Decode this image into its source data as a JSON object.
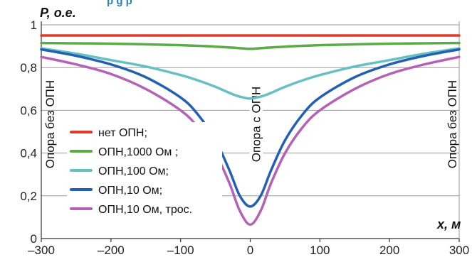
{
  "chart_data": {
    "type": "line",
    "title_fragment": "р                                              g р",
    "ylabel": "P, о.е.",
    "xlabel": "x, м",
    "xlim": [
      -300,
      300
    ],
    "ylim": [
      0,
      1
    ],
    "x_ticks": [
      -300,
      -200,
      -100,
      0,
      100,
      200,
      300
    ],
    "x_tick_labels": [
      "–300",
      "–200",
      "–100",
      "0",
      "100",
      "200",
      "300"
    ],
    "y_ticks": [
      0,
      0.2,
      0.4,
      0.6,
      0.8,
      1
    ],
    "y_tick_labels": [
      "0",
      "0,2",
      "0,4",
      "0,6",
      "0,8",
      "1"
    ],
    "grid": "horizontal",
    "legend_position": "lower-left",
    "annotations": [
      {
        "text": "Опора без ОПН",
        "x": -300
      },
      {
        "text": "Опора с ОПН",
        "x": 0
      },
      {
        "text": "Опора без ОПН",
        "x": 300
      }
    ],
    "series": [
      {
        "name": "нет ОПН;",
        "color": "#e03a2a",
        "x": [
          -300,
          300
        ],
        "y": [
          0.95,
          0.95
        ]
      },
      {
        "name": "ОПН,1000 Ом ;",
        "color": "#5aac44",
        "x": [
          -300,
          -200,
          -100,
          -50,
          -20,
          0,
          20,
          50,
          100,
          200,
          300
        ],
        "y": [
          0.915,
          0.912,
          0.905,
          0.898,
          0.892,
          0.888,
          0.892,
          0.898,
          0.905,
          0.912,
          0.915
        ]
      },
      {
        "name": "ОПН,100 Ом;",
        "color": "#65c0c4",
        "x": [
          -300,
          -250,
          -200,
          -150,
          -100,
          -75,
          -50,
          -25,
          -10,
          0,
          10,
          25,
          50,
          75,
          100,
          150,
          200,
          250,
          300
        ],
        "y": [
          0.89,
          0.865,
          0.835,
          0.805,
          0.765,
          0.74,
          0.71,
          0.675,
          0.66,
          0.655,
          0.66,
          0.675,
          0.71,
          0.74,
          0.765,
          0.805,
          0.835,
          0.865,
          0.89
        ]
      },
      {
        "name": "ОПН,10 Ом;",
        "color": "#2360b3",
        "x": [
          -300,
          -250,
          -200,
          -150,
          -100,
          -75,
          -50,
          -30,
          -15,
          0,
          15,
          30,
          50,
          75,
          100,
          150,
          200,
          250,
          300
        ],
        "y": [
          0.885,
          0.855,
          0.815,
          0.755,
          0.66,
          0.58,
          0.46,
          0.32,
          0.2,
          0.15,
          0.2,
          0.32,
          0.46,
          0.58,
          0.66,
          0.755,
          0.815,
          0.855,
          0.885
        ]
      },
      {
        "name": "ОПН,10 Ом, трос.",
        "color": "#b461b6",
        "x": [
          -300,
          -250,
          -200,
          -150,
          -100,
          -75,
          -50,
          -30,
          -15,
          0,
          15,
          30,
          50,
          75,
          100,
          150,
          200,
          250,
          300
        ],
        "y": [
          0.85,
          0.815,
          0.77,
          0.7,
          0.6,
          0.52,
          0.4,
          0.26,
          0.13,
          0.065,
          0.13,
          0.26,
          0.4,
          0.52,
          0.6,
          0.7,
          0.77,
          0.815,
          0.85
        ]
      }
    ]
  }
}
